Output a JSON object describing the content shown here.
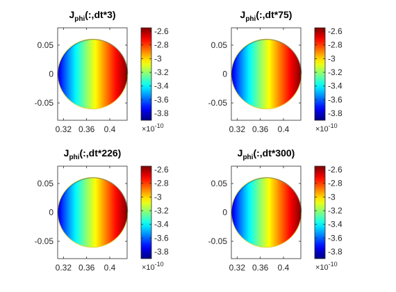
{
  "chart_data": [
    {
      "type": "heatmap",
      "title_main": "J",
      "title_sub": "phi",
      "title_rest": "(:,dt*3)",
      "xlim": [
        0.31,
        0.43
      ],
      "ylim": [
        -0.08,
        0.08
      ],
      "xticks": [
        0.32,
        0.36,
        0.4
      ],
      "xtick_labels": [
        "0.32",
        "0.36",
        "0.4"
      ],
      "yticks": [
        0.05,
        0,
        -0.05
      ],
      "ytick_labels": [
        "0.05",
        "0",
        "-0.05"
      ],
      "circle": {
        "center_r": 0.3705,
        "center_z": 0.0,
        "radius": 0.0605
      },
      "color_range": [
        -3.9,
        -2.55
      ],
      "colorbar_ticks": [
        -2.6,
        -2.8,
        -3,
        -3.2,
        -3.4,
        -3.6,
        -3.8
      ],
      "colorbar_labels": [
        "-2.6",
        "-2.8",
        "-3",
        "-3.2",
        "-3.4",
        "-3.6",
        "-3.8"
      ],
      "colorbar_exp_base": "×10",
      "colorbar_exp": "-10",
      "colormap": "jet"
    },
    {
      "type": "heatmap",
      "title_main": "J",
      "title_sub": "phi",
      "title_rest": "(:,dt*75)",
      "xlim": [
        0.31,
        0.43
      ],
      "ylim": [
        -0.08,
        0.08
      ],
      "xticks": [
        0.32,
        0.36,
        0.4
      ],
      "xtick_labels": [
        "0.32",
        "0.36",
        "0.4"
      ],
      "yticks": [
        0.05,
        0,
        -0.05
      ],
      "ytick_labels": [
        "0.05",
        "0",
        "-0.05"
      ],
      "circle": {
        "center_r": 0.3705,
        "center_z": 0.0,
        "radius": 0.0605
      },
      "color_range": [
        -3.9,
        -2.55
      ],
      "colorbar_ticks": [
        -2.6,
        -2.8,
        -3,
        -3.2,
        -3.4,
        -3.6,
        -3.8
      ],
      "colorbar_labels": [
        "-2.6",
        "-2.8",
        "-3",
        "-3.2",
        "-3.4",
        "-3.6",
        "-3.8"
      ],
      "colorbar_exp_base": "×10",
      "colorbar_exp": "-10",
      "colormap": "jet"
    },
    {
      "type": "heatmap",
      "title_main": "J",
      "title_sub": "phi",
      "title_rest": "(:,dt*226)",
      "xlim": [
        0.31,
        0.43
      ],
      "ylim": [
        -0.08,
        0.08
      ],
      "xticks": [
        0.32,
        0.36,
        0.4
      ],
      "xtick_labels": [
        "0.32",
        "0.36",
        "0.4"
      ],
      "yticks": [
        0.05,
        0,
        -0.05
      ],
      "ytick_labels": [
        "0.05",
        "0",
        "-0.05"
      ],
      "circle": {
        "center_r": 0.3705,
        "center_z": 0.0,
        "radius": 0.0605
      },
      "color_range": [
        -3.9,
        -2.55
      ],
      "colorbar_ticks": [
        -2.6,
        -2.8,
        -3,
        -3.2,
        -3.4,
        -3.6,
        -3.8
      ],
      "colorbar_labels": [
        "-2.6",
        "-2.8",
        "-3",
        "-3.2",
        "-3.4",
        "-3.6",
        "-3.8"
      ],
      "colorbar_exp_base": "×10",
      "colorbar_exp": "-10",
      "colormap": "jet"
    },
    {
      "type": "heatmap",
      "title_main": "J",
      "title_sub": "phi",
      "title_rest": "(:,dt*300)",
      "xlim": [
        0.31,
        0.43
      ],
      "ylim": [
        -0.08,
        0.08
      ],
      "xticks": [
        0.32,
        0.36,
        0.4
      ],
      "xtick_labels": [
        "0.32",
        "0.36",
        "0.4"
      ],
      "yticks": [
        0.05,
        0,
        -0.05
      ],
      "ytick_labels": [
        "0.05",
        "0",
        "-0.05"
      ],
      "circle": {
        "center_r": 0.3705,
        "center_z": 0.0,
        "radius": 0.0605
      },
      "color_range": [
        -3.9,
        -2.55
      ],
      "colorbar_ticks": [
        -2.6,
        -2.8,
        -3,
        -3.2,
        -3.4,
        -3.6,
        -3.8
      ],
      "colorbar_labels": [
        "-2.6",
        "-2.8",
        "-3",
        "-3.2",
        "-3.4",
        "-3.6",
        "-3.8"
      ],
      "colorbar_exp_base": "×10",
      "colorbar_exp": "-10",
      "colormap": "jet"
    }
  ]
}
